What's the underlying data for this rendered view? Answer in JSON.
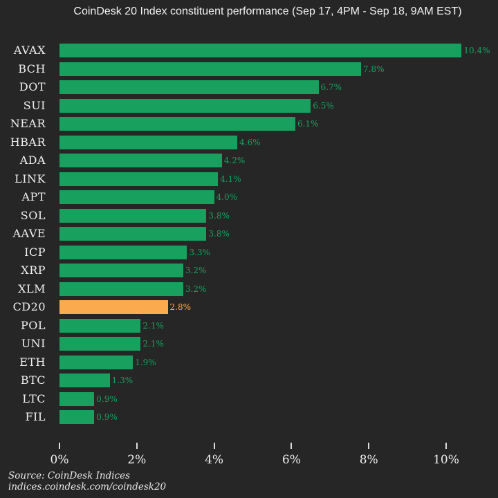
{
  "title": "CoinDesk 20 Index constituent performance (Sep 17, 4PM - Sep 18, 9AM EST)",
  "footer": {
    "source_line": "Source: CoinDesk Indices",
    "url_line": "indices.coindesk.com/coindesk20"
  },
  "chart_data": {
    "type": "bar",
    "orientation": "horizontal",
    "title": "CoinDesk 20 Index constituent performance (Sep 17, 4PM - Sep 18, 9AM EST)",
    "categories": [
      "AVAX",
      "BCH",
      "DOT",
      "SUI",
      "NEAR",
      "HBAR",
      "ADA",
      "LINK",
      "APT",
      "SOL",
      "AAVE",
      "ICP",
      "XRP",
      "XLM",
      "CD20",
      "POL",
      "UNI",
      "ETH",
      "BTC",
      "LTC",
      "FIL"
    ],
    "values": [
      10.4,
      7.8,
      6.7,
      6.5,
      6.1,
      4.6,
      4.2,
      4.1,
      4.0,
      3.8,
      3.8,
      3.3,
      3.2,
      3.2,
      2.8,
      2.1,
      2.1,
      1.9,
      1.3,
      0.9,
      0.9
    ],
    "value_labels": [
      "10.4%",
      "7.8%",
      "6.7%",
      "6.5%",
      "6.1%",
      "4.6%",
      "4.2%",
      "4.1%",
      "4.0%",
      "3.8%",
      "3.8%",
      "3.3%",
      "3.2%",
      "3.2%",
      "2.8%",
      "2.1%",
      "2.1%",
      "1.9%",
      "1.3%",
      "0.9%",
      "0.9%"
    ],
    "highlight_category": "CD20",
    "x_ticks": [
      "0%",
      "2%",
      "4%",
      "6%",
      "8%",
      "10%"
    ],
    "x_tick_values": [
      0,
      2,
      4,
      6,
      8,
      10
    ],
    "xlim": [
      0,
      11.3
    ],
    "grid": false,
    "legend": "none",
    "colors": {
      "background": "#262626",
      "bar_green": "#17A05E",
      "bar_orange": "#FBAB4D",
      "category_text": "#F0F0F0",
      "axis_text": "#F0F0F0",
      "tick_mark": "#DCDCDC",
      "title_text": "#F2F2F2",
      "footer_text": "#E9E9E9"
    }
  }
}
